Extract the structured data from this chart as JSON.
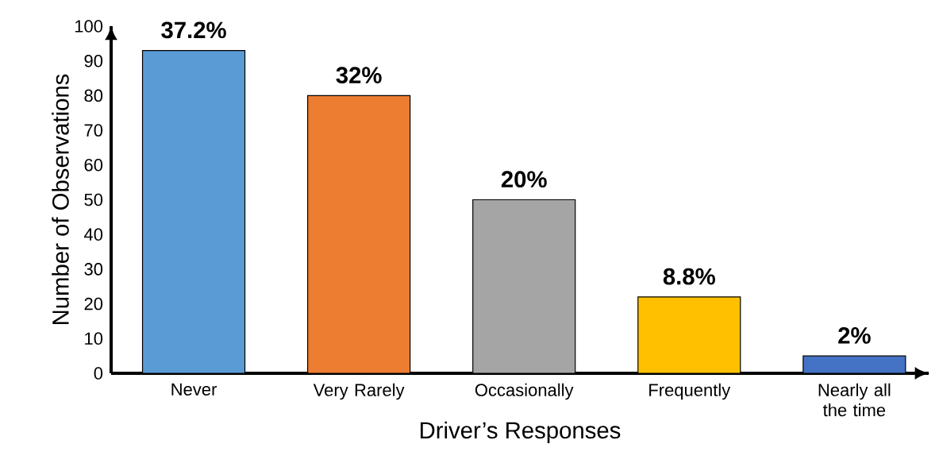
{
  "chart_data": {
    "type": "bar",
    "xlabel": "Driver’s Responses",
    "ylabel": "Number of Observations",
    "categories": [
      "Never",
      "Very Rarely",
      "Occasionally",
      "Frequently",
      "Nearly all the time"
    ],
    "values": [
      93,
      80,
      50,
      22,
      5
    ],
    "colors": [
      "#5b9bd5",
      "#ed7d31",
      "#a5a5a5",
      "#ffc000",
      "#4472c4"
    ],
    "annotations": [
      {
        "text": "37.2%",
        "x": "Never",
        "y": 93
      },
      {
        "text": "32%",
        "x": "Very Rarely",
        "y": 80
      },
      {
        "text": "20%",
        "x": "Occasionally",
        "y": 50
      },
      {
        "text": "8.8%",
        "x": "Frequently",
        "y": 22
      },
      {
        "text": "2%",
        "x": "Nearly all the time",
        "y": 5
      }
    ],
    "ylim": [
      0,
      100
    ],
    "yticks": [
      0,
      10,
      20,
      30,
      40,
      50,
      60,
      70,
      80,
      90,
      100
    ],
    "grid": false
  }
}
